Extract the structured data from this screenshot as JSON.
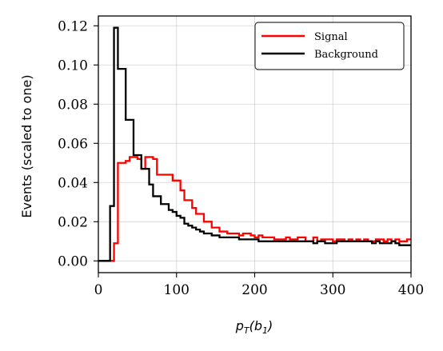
{
  "chart_data": {
    "type": "line",
    "style": "step histogram",
    "title": "",
    "xlabel": "p_T(b_1)",
    "ylabel": "Events (scaled to one)",
    "xlim": [
      0,
      400
    ],
    "ylim": [
      -0.006,
      0.125
    ],
    "xticks": [
      0,
      100,
      200,
      300,
      400
    ],
    "yticks": [
      0.0,
      0.02,
      0.04,
      0.06,
      0.08,
      0.1,
      0.12
    ],
    "xtick_labels": [
      "0",
      "100",
      "200",
      "300",
      "400"
    ],
    "ytick_labels": [
      "0.00",
      "0.02",
      "0.04",
      "0.06",
      "0.08",
      "0.10",
      "0.12"
    ],
    "grid": true,
    "legend_position": "top-right",
    "bin_edges": [
      0,
      5,
      10,
      15,
      20,
      25,
      30,
      35,
      40,
      45,
      50,
      55,
      60,
      65,
      70,
      75,
      80,
      85,
      90,
      95,
      100,
      105,
      110,
      115,
      120,
      125,
      130,
      135,
      140,
      145,
      150,
      155,
      160,
      165,
      170,
      175,
      180,
      185,
      190,
      195,
      200,
      205,
      210,
      215,
      220,
      225,
      230,
      235,
      240,
      245,
      250,
      255,
      260,
      265,
      270,
      275,
      280,
      285,
      290,
      295,
      300,
      305,
      310,
      315,
      320,
      325,
      330,
      335,
      340,
      345,
      350,
      355,
      360,
      365,
      370,
      375,
      380,
      385,
      390,
      395,
      400
    ],
    "series": [
      {
        "name": "Signal",
        "color": "#ff0000",
        "values": [
          0,
          0,
          0,
          0,
          0.009,
          0.05,
          0.05,
          0.051,
          0.053,
          0.053,
          0.052,
          0.047,
          0.053,
          0.053,
          0.052,
          0.044,
          0.044,
          0.044,
          0.044,
          0.041,
          0.041,
          0.036,
          0.031,
          0.031,
          0.027,
          0.024,
          0.024,
          0.02,
          0.02,
          0.017,
          0.017,
          0.015,
          0.015,
          0.014,
          0.014,
          0.014,
          0.013,
          0.014,
          0.014,
          0.013,
          0.012,
          0.013,
          0.012,
          0.012,
          0.012,
          0.011,
          0.011,
          0.011,
          0.012,
          0.011,
          0.011,
          0.012,
          0.012,
          0.01,
          0.01,
          0.012,
          0.01,
          0.011,
          0.011,
          0.011,
          0.01,
          0.011,
          0.011,
          0.01,
          0.011,
          0.01,
          0.011,
          0.01,
          0.011,
          0.01,
          0.01,
          0.011,
          0.011,
          0.01,
          0.011,
          0.01,
          0.011,
          0.01,
          0.01,
          0.011
        ]
      },
      {
        "name": "Background",
        "color": "#000000",
        "values": [
          0,
          0,
          0,
          0.028,
          0.119,
          0.098,
          0.098,
          0.072,
          0.072,
          0.054,
          0.054,
          0.047,
          0.047,
          0.039,
          0.033,
          0.033,
          0.029,
          0.029,
          0.026,
          0.025,
          0.023,
          0.022,
          0.019,
          0.018,
          0.017,
          0.016,
          0.015,
          0.014,
          0.014,
          0.013,
          0.013,
          0.012,
          0.012,
          0.012,
          0.012,
          0.012,
          0.011,
          0.011,
          0.011,
          0.011,
          0.011,
          0.01,
          0.01,
          0.01,
          0.01,
          0.01,
          0.01,
          0.01,
          0.01,
          0.01,
          0.01,
          0.01,
          0.01,
          0.01,
          0.01,
          0.009,
          0.01,
          0.01,
          0.009,
          0.009,
          0.009,
          0.01,
          0.01,
          0.01,
          0.01,
          0.01,
          0.01,
          0.01,
          0.01,
          0.01,
          0.009,
          0.01,
          0.009,
          0.009,
          0.009,
          0.01,
          0.009,
          0.008,
          0.008,
          0.008
        ]
      }
    ]
  }
}
